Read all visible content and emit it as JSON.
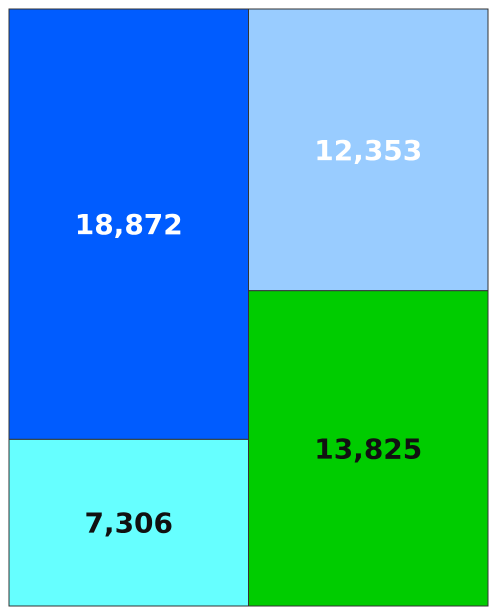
{
  "chart_data": {
    "type": "treemap",
    "values": [
      18872,
      7306,
      12353,
      13825
    ],
    "value_labels": [
      "18,872",
      "7,306",
      "12,353",
      "13,825"
    ],
    "colors": [
      "#005cff",
      "#66ffff",
      "#99ccff",
      "#00cc00"
    ],
    "label_colors": [
      "#ffffff",
      "#111111",
      "#ffffff",
      "#111111"
    ]
  }
}
